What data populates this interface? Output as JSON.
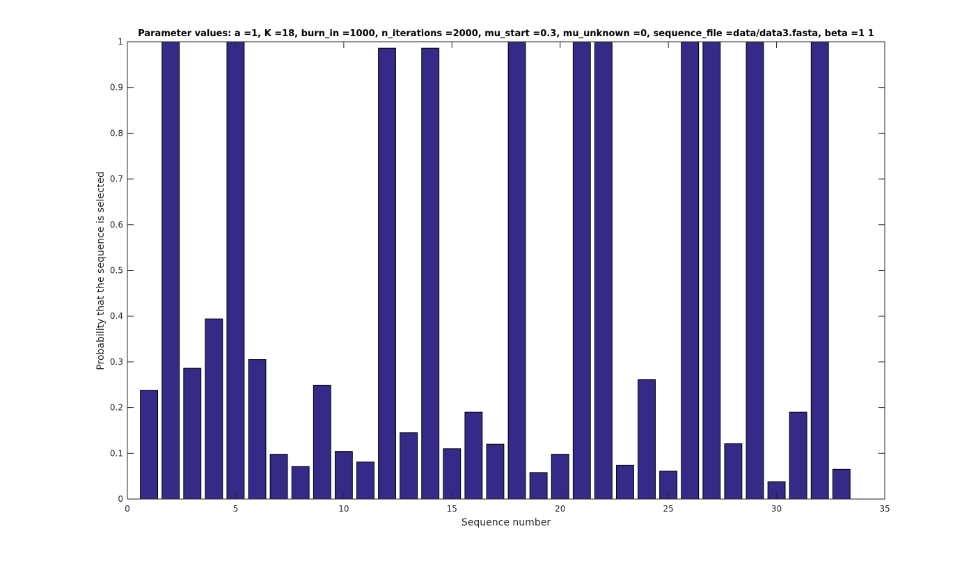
{
  "chart_data": {
    "type": "bar",
    "title": "Parameter values: a =1, K =18, burn_in =1000, n_iterations =2000, mu_start =0.3, mu_unknown =0, sequence_file =data/data3.fasta, beta =1  1",
    "xlabel": "Sequence number",
    "ylabel": "Probability that the sequence is selected",
    "xlim": [
      0,
      35
    ],
    "ylim": [
      0,
      1
    ],
    "x_ticks": [
      0,
      5,
      10,
      15,
      20,
      25,
      30,
      35
    ],
    "y_ticks": [
      0,
      0.1,
      0.2,
      0.3,
      0.4,
      0.5,
      0.6,
      0.7,
      0.8,
      0.9,
      1
    ],
    "grid": false,
    "bar_color": "#352a87",
    "x": [
      1,
      2,
      3,
      4,
      5,
      6,
      7,
      8,
      9,
      10,
      11,
      12,
      13,
      14,
      15,
      16,
      17,
      18,
      19,
      20,
      21,
      22,
      23,
      24,
      25,
      26,
      27,
      28,
      29,
      30,
      31,
      32,
      33
    ],
    "values": [
      0.238,
      1.0,
      0.286,
      0.394,
      1.0,
      0.305,
      0.098,
      0.071,
      0.249,
      0.104,
      0.081,
      0.986,
      0.145,
      0.986,
      0.11,
      0.19,
      0.12,
      0.998,
      0.058,
      0.098,
      0.998,
      0.998,
      0.074,
      0.261,
      0.061,
      1.0,
      1.0,
      0.121,
      0.998,
      0.038,
      0.19,
      1.0,
      0.065
    ]
  }
}
